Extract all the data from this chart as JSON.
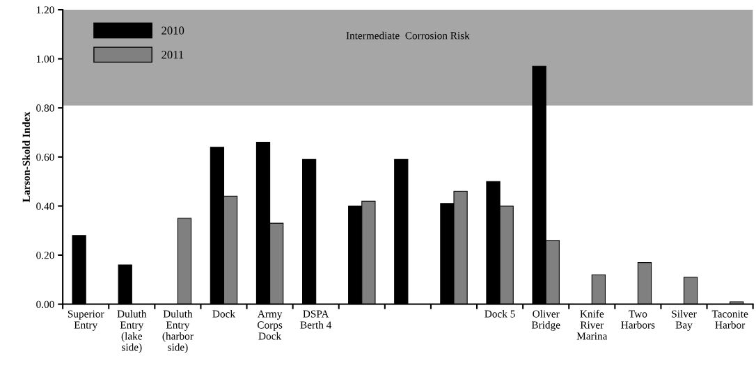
{
  "chart_data": {
    "type": "bar",
    "ylabel": "Larson-Skold Index",
    "categories": [
      "Superior\nEntry",
      "Duluth\nEntry\n(lake\nside)",
      "Duluth\nEntry\n(harbor\nside)",
      "Dock",
      "Army\nCorps\nDock",
      "DSPA\nBerth 4",
      null,
      null,
      null,
      "Dock 5",
      "Oliver\nBridge",
      "Knife\nRiver\nMarina",
      "Two\nHarbors",
      "Silver\nBay",
      "Taconite\nHarbor"
    ],
    "series": [
      {
        "name": "2010",
        "color": "#000000",
        "values": [
          0.28,
          0.16,
          null,
          0.64,
          0.66,
          0.59,
          0.4,
          0.59,
          0.41,
          0.5,
          0.97,
          null,
          null,
          null,
          null
        ]
      },
      {
        "name": "2011",
        "color": "#808080",
        "values": [
          null,
          null,
          0.35,
          0.44,
          0.33,
          null,
          0.42,
          null,
          0.46,
          0.4,
          0.26,
          0.12,
          0.17,
          0.11,
          0.01
        ]
      }
    ],
    "ylim": [
      0,
      1.2
    ],
    "yticks": [
      {
        "value": 0,
        "label": "0.00"
      },
      {
        "value": 0.2,
        "label": "0.20"
      },
      {
        "value": 0.4,
        "label": "0.40"
      },
      {
        "value": 0.6,
        "label": "0.60"
      },
      {
        "value": 0.8,
        "label": "0.80"
      },
      {
        "value": 1.0,
        "label": "1.00"
      },
      {
        "value": 1.2,
        "label": "1.20"
      }
    ],
    "bands": [
      {
        "axis": "y",
        "from": 0.81,
        "to": 1.2,
        "label": "Intermediate  Corrosion Risk",
        "color": "#a6a6a6"
      }
    ],
    "legend": "top left",
    "grid": false
  }
}
